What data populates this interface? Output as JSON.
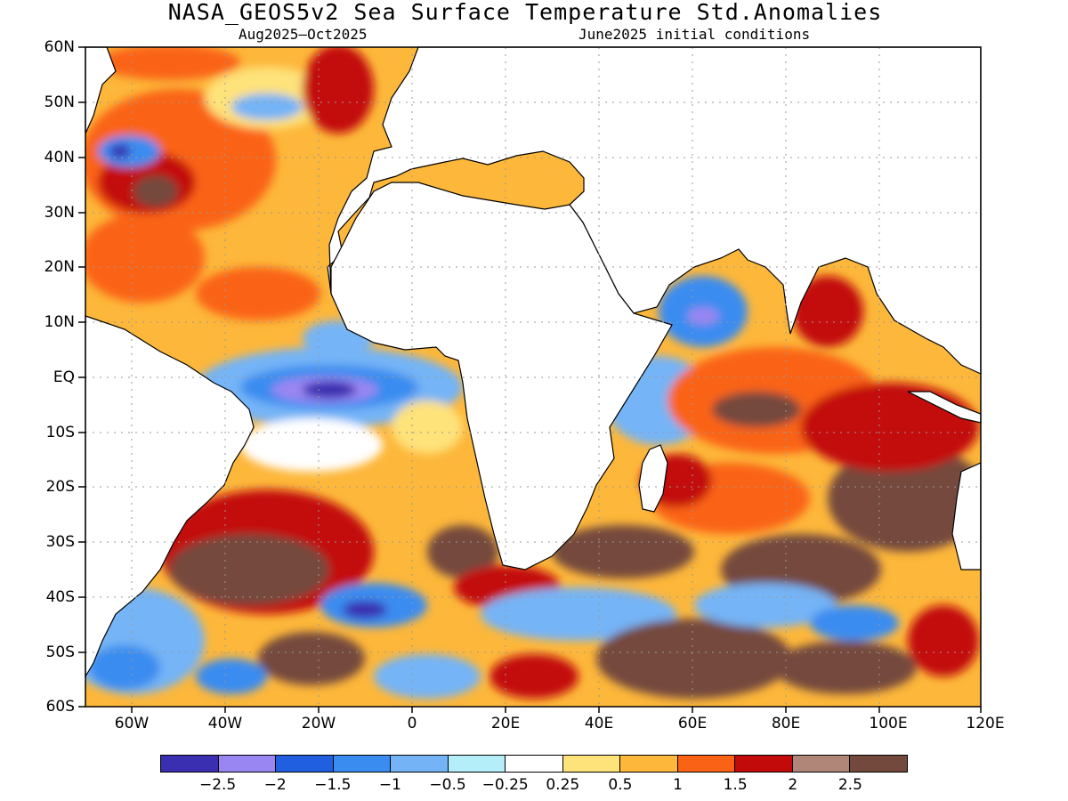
{
  "title": "NASA_GEOS5v2 Sea Surface Temperature Std.Anomalies",
  "subtitle_left": "Aug2025–Oct2025",
  "subtitle_right": "June2025 initial conditions",
  "y_ticks": [
    "60N",
    "50N",
    "40N",
    "30N",
    "20N",
    "10N",
    "EQ",
    "10S",
    "20S",
    "30S",
    "40S",
    "50S",
    "60S"
  ],
  "x_ticks": [
    "60W",
    "40W",
    "20W",
    "0",
    "20E",
    "40E",
    "60E",
    "80E",
    "100E",
    "120E"
  ],
  "colorbar": {
    "colors": [
      "#3a2fb0",
      "#9a86f2",
      "#1f5fe0",
      "#3a8cf0",
      "#74b4f6",
      "#b3eef9",
      "#ffffff",
      "#fee27a",
      "#fdb73a",
      "#fa6316",
      "#c30a0a",
      "#b08679",
      "#74493d"
    ],
    "labels": [
      "−2.5",
      "−2",
      "−1.5",
      "−1",
      "−0.5",
      "−0.25",
      "0.25",
      "0.5",
      "1",
      "1.5",
      "2",
      "2.5"
    ]
  }
}
